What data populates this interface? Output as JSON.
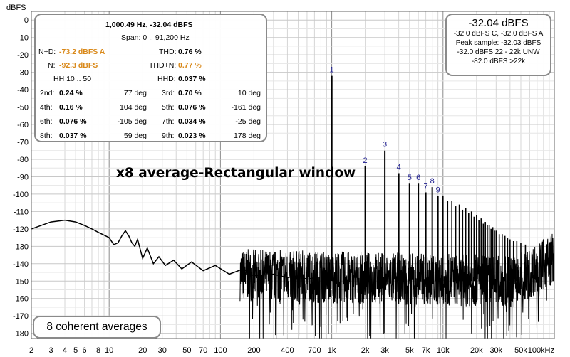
{
  "chart_data": {
    "type": "line",
    "title": "x8 average-Rectangular window",
    "ylabel": "dBFS",
    "xlabel": "",
    "x_scale": "log",
    "xlim": [
      2,
      100000
    ],
    "ylim": [
      -183,
      5
    ],
    "grid": true,
    "y_ticks": [
      "0",
      "-10",
      "-20",
      "-30",
      "-40",
      "-50",
      "-60",
      "-70",
      "-80",
      "-90",
      "-100",
      "-110",
      "-120",
      "-130",
      "-140",
      "-150",
      "-160",
      "-170",
      "-180"
    ],
    "x_ticks": [
      {
        "v": 2,
        "label": "2"
      },
      {
        "v": 3,
        "label": "3"
      },
      {
        "v": 4,
        "label": "4"
      },
      {
        "v": 5,
        "label": "5"
      },
      {
        "v": 6,
        "label": "6"
      },
      {
        "v": 8,
        "label": "8"
      },
      {
        "v": 10,
        "label": "10"
      },
      {
        "v": 20,
        "label": "20"
      },
      {
        "v": 30,
        "label": "30"
      },
      {
        "v": 50,
        "label": "50"
      },
      {
        "v": 70,
        "label": "70"
      },
      {
        "v": 100,
        "label": "100"
      },
      {
        "v": 200,
        "label": "200"
      },
      {
        "v": 400,
        "label": "400"
      },
      {
        "v": 700,
        "label": "700"
      },
      {
        "v": 1000,
        "label": "1k"
      },
      {
        "v": 2000,
        "label": "2k"
      },
      {
        "v": 3000,
        "label": "3k"
      },
      {
        "v": 5000,
        "label": "5k"
      },
      {
        "v": 7000,
        "label": "7k"
      },
      {
        "v": 10000,
        "label": "10k"
      },
      {
        "v": 20000,
        "label": "20k"
      },
      {
        "v": 30000,
        "label": "30k"
      },
      {
        "v": 50000,
        "label": "50k"
      },
      {
        "v": 100000,
        "label": "100kHz"
      }
    ],
    "series": [
      {
        "name": "",
        "color": "#000000",
        "x": [
          2,
          3,
          4,
          5,
          6,
          7,
          8,
          10,
          11,
          12,
          13,
          14,
          15,
          16,
          17,
          18,
          20,
          22,
          25,
          28,
          32,
          38,
          45,
          55,
          70,
          90,
          120,
          160,
          200,
          300,
          400,
          500,
          600,
          700
        ],
        "y": [
          -120,
          -116,
          -115,
          -116,
          -118,
          -120,
          -122,
          -125,
          -129,
          -128,
          -124,
          -121,
          -124,
          -128,
          -130,
          -126,
          -137,
          -131,
          -140,
          -136,
          -141,
          -138,
          -143,
          -139,
          -144,
          -141,
          -146,
          -143,
          -147,
          -146,
          -148,
          -147,
          -149,
          -148
        ]
      }
    ],
    "harmonics": [
      {
        "label": "1",
        "f": 1000,
        "db": -32.04
      },
      {
        "label": "2",
        "f": 2000,
        "db": -84
      },
      {
        "label": "3",
        "f": 3000,
        "db": -75
      },
      {
        "label": "4",
        "f": 4000,
        "db": -88
      },
      {
        "label": "5",
        "f": 5000,
        "db": -94
      },
      {
        "label": "6",
        "f": 6000,
        "db": -94
      },
      {
        "label": "7",
        "f": 7000,
        "db": -99
      },
      {
        "label": "8",
        "f": 8000,
        "db": -96
      },
      {
        "label": "9",
        "f": 9000,
        "db": -101
      }
    ],
    "spurs": [
      {
        "f": 10000,
        "db": -101
      },
      {
        "f": 11000,
        "db": -104
      },
      {
        "f": 12000,
        "db": -104
      },
      {
        "f": 13000,
        "db": -107
      },
      {
        "f": 14000,
        "db": -106
      },
      {
        "f": 15000,
        "db": -109
      },
      {
        "f": 16000,
        "db": -108
      },
      {
        "f": 17000,
        "db": -111
      },
      {
        "f": 18000,
        "db": -110
      },
      {
        "f": 19000,
        "db": -113
      },
      {
        "f": 20000,
        "db": -112
      },
      {
        "f": 21000,
        "db": -115
      },
      {
        "f": 22000,
        "db": -114
      },
      {
        "f": 23000,
        "db": -117
      },
      {
        "f": 24000,
        "db": -116
      },
      {
        "f": 25000,
        "db": -118
      },
      {
        "f": 26000,
        "db": -118
      },
      {
        "f": 27000,
        "db": -120
      },
      {
        "f": 28000,
        "db": -119
      },
      {
        "f": 29000,
        "db": -121
      },
      {
        "f": 30000,
        "db": -121
      },
      {
        "f": 32000,
        "db": -123
      },
      {
        "f": 34000,
        "db": -123
      },
      {
        "f": 36000,
        "db": -124
      },
      {
        "f": 38000,
        "db": -125
      },
      {
        "f": 40000,
        "db": -126
      },
      {
        "f": 43000,
        "db": -127
      },
      {
        "f": 46000,
        "db": -127
      },
      {
        "f": 50000,
        "db": -128
      },
      {
        "f": 55000,
        "db": -129
      }
    ]
  },
  "distortion_panel": {
    "header": "1,000.49 Hz, -32.04 dBFS",
    "span": "Span: 0 .. 91,200 Hz",
    "nd_label": "N+D:",
    "nd_value": "-73.2 dBFS A",
    "thd_label": "THD:",
    "thd_value": "0.76 %",
    "n_label": "N:",
    "n_value": "-92.3 dBFS",
    "thdn_label": "THD+N:",
    "thdn_value": "0.77 %",
    "hh_range": "HH 10 .. 50",
    "hhd_label": "HHD:",
    "hhd_value": "0.037 %",
    "rows": [
      {
        "l1": "2nd:",
        "v1": "0.24 %",
        "p1": "77 deg",
        "l2": "3rd:",
        "v2": "0.70 %",
        "p2": "10 deg"
      },
      {
        "l1": "4th:",
        "v1": "0.16 %",
        "p1": "104 deg",
        "l2": "5th:",
        "v2": "0.076 %",
        "p2": "-161 deg"
      },
      {
        "l1": "6th:",
        "v1": "0.076 %",
        "p1": "-105 deg",
        "l2": "7th:",
        "v2": "0.034 %",
        "p2": "-25 deg"
      },
      {
        "l1": "8th:",
        "v1": "0.037 %",
        "p1": "59 deg",
        "l2": "9th:",
        "v2": "0.023 %",
        "p2": "178 deg"
      }
    ]
  },
  "level_panel": {
    "main": "-32.04 dBFS",
    "line1": "-32.0 dBFS C, -32.0 dBFS A",
    "line2": "Peak sample: -32.03 dBFS",
    "line3": "-32.0 dBFS 22 - 22k UNW",
    "line4": "-82.0 dBFS >22k"
  },
  "averages_label": "8 coherent averages"
}
